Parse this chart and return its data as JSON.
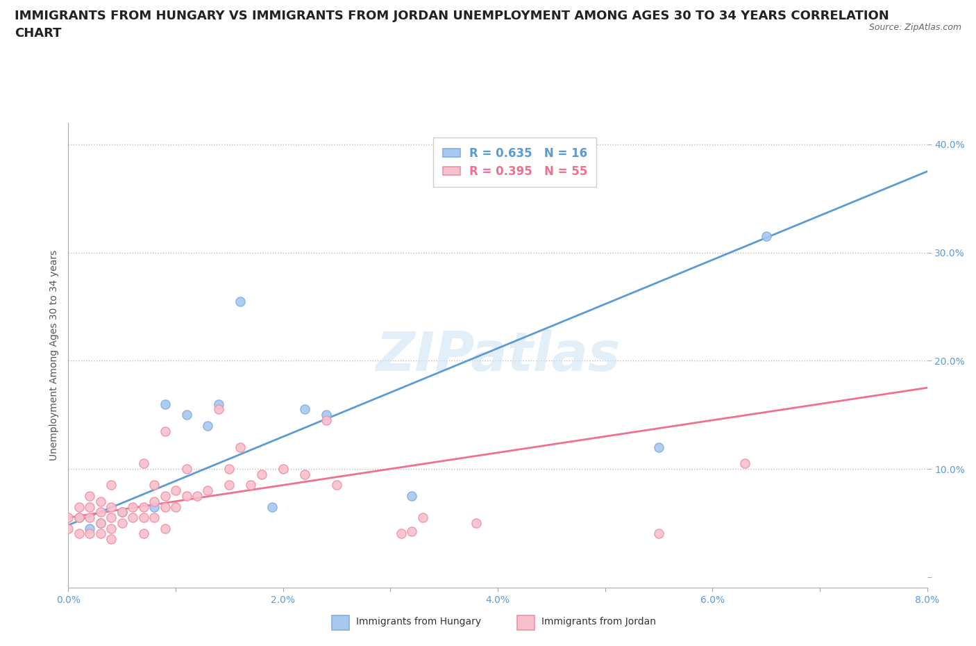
{
  "title": "IMMIGRANTS FROM HUNGARY VS IMMIGRANTS FROM JORDAN UNEMPLOYMENT AMONG AGES 30 TO 34 YEARS CORRELATION\nCHART",
  "source_text": "Source: ZipAtlas.com",
  "ylabel": "Unemployment Among Ages 30 to 34 years",
  "xlim": [
    0.0,
    0.08
  ],
  "ylim": [
    -0.01,
    0.42
  ],
  "xticks": [
    0.0,
    0.01,
    0.02,
    0.03,
    0.04,
    0.05,
    0.06,
    0.07,
    0.08
  ],
  "xticklabels": [
    "0.0%",
    "",
    "2.0%",
    "",
    "4.0%",
    "",
    "6.0%",
    "",
    "8.0%"
  ],
  "yticks": [
    0.0,
    0.1,
    0.2,
    0.3,
    0.4
  ],
  "yticklabels": [
    "",
    "10.0%",
    "20.0%",
    "30.0%",
    "40.0%"
  ],
  "watermark": "ZIPatlas",
  "hungary_color": "#a8c8f0",
  "jordan_color": "#f8c0cc",
  "hungary_edge_color": "#7eb0e0",
  "jordan_edge_color": "#f090a8",
  "hungary_line_color": "#5b9bd5",
  "jordan_line_color": "#f07090",
  "hungary_R": 0.635,
  "hungary_N": 16,
  "jordan_R": 0.395,
  "jordan_N": 55,
  "hungary_scatter_x": [
    0.001,
    0.002,
    0.003,
    0.005,
    0.008,
    0.009,
    0.011,
    0.013,
    0.014,
    0.016,
    0.019,
    0.022,
    0.024,
    0.032,
    0.055,
    0.065
  ],
  "hungary_scatter_y": [
    0.055,
    0.045,
    0.05,
    0.06,
    0.065,
    0.16,
    0.15,
    0.14,
    0.16,
    0.255,
    0.065,
    0.155,
    0.15,
    0.075,
    0.12,
    0.315
  ],
  "jordan_scatter_x": [
    0.0,
    0.0,
    0.001,
    0.001,
    0.001,
    0.002,
    0.002,
    0.002,
    0.002,
    0.003,
    0.003,
    0.003,
    0.003,
    0.004,
    0.004,
    0.004,
    0.004,
    0.004,
    0.005,
    0.005,
    0.006,
    0.006,
    0.007,
    0.007,
    0.007,
    0.007,
    0.008,
    0.008,
    0.008,
    0.009,
    0.009,
    0.009,
    0.009,
    0.01,
    0.01,
    0.011,
    0.011,
    0.012,
    0.013,
    0.014,
    0.015,
    0.015,
    0.016,
    0.017,
    0.018,
    0.02,
    0.022,
    0.024,
    0.025,
    0.031,
    0.032,
    0.033,
    0.038,
    0.055,
    0.063
  ],
  "jordan_scatter_y": [
    0.045,
    0.055,
    0.04,
    0.055,
    0.065,
    0.04,
    0.055,
    0.065,
    0.075,
    0.04,
    0.05,
    0.06,
    0.07,
    0.035,
    0.045,
    0.055,
    0.065,
    0.085,
    0.05,
    0.06,
    0.055,
    0.065,
    0.04,
    0.055,
    0.065,
    0.105,
    0.055,
    0.07,
    0.085,
    0.045,
    0.065,
    0.075,
    0.135,
    0.065,
    0.08,
    0.075,
    0.1,
    0.075,
    0.08,
    0.155,
    0.085,
    0.1,
    0.12,
    0.085,
    0.095,
    0.1,
    0.095,
    0.145,
    0.085,
    0.04,
    0.042,
    0.055,
    0.05,
    0.04,
    0.105
  ],
  "hungary_trendline_x": [
    0.0,
    0.08
  ],
  "hungary_trendline_y": [
    0.048,
    0.375
  ],
  "jordan_trendline_x": [
    0.0,
    0.08
  ],
  "jordan_trendline_y": [
    0.055,
    0.175
  ],
  "background_color": "#ffffff",
  "grid_color": "#bbbbbb",
  "title_fontsize": 13,
  "label_fontsize": 10,
  "tick_fontsize": 10,
  "legend_fontsize": 12
}
